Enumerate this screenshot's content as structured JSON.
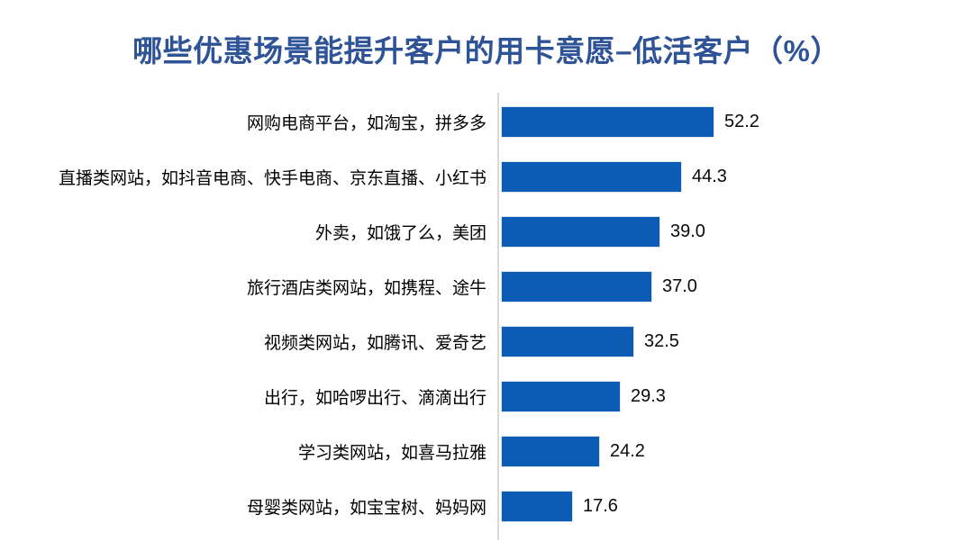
{
  "title": "哪些优惠场景能提升客户的用卡意愿–低活客户（%）",
  "colors": {
    "title_text": "#2E5396",
    "bar_fill": "#0C5BB5",
    "bar_border": "#DCE6F1",
    "axis_line": "#D9D9D9",
    "value_text": "#0A0A0A",
    "category_text": "#000000",
    "background": "#FFFFFF"
  },
  "chart_data": {
    "type": "bar",
    "orientation": "horizontal",
    "title": "哪些优惠场景能提升客户的用卡意愿–低活客户（%）",
    "xlabel": "",
    "ylabel": "",
    "xlim": [
      0,
      113
    ],
    "grid": false,
    "legend": false,
    "value_labels_shown": true,
    "categories": [
      "网购电商平台，如淘宝，拼多多",
      "直播类网站，如抖音电商、快手电商、京东直播、小红书",
      "外卖，如饿了么，美团",
      "旅行酒店类网站，如携程、途牛",
      "视频类网站，如腾讯、爱奇艺",
      "出行，如哈啰出行、滴滴出行",
      "学习类网站，如喜马拉雅",
      "母婴类网站，如宝宝树、妈妈网"
    ],
    "values": [
      52.2,
      44.3,
      39.0,
      37.0,
      32.5,
      29.3,
      24.2,
      17.6
    ],
    "value_labels": [
      "52.2",
      "44.3",
      "39.0",
      "37.0",
      "32.5",
      "29.3",
      "24.2",
      "17.6"
    ]
  }
}
